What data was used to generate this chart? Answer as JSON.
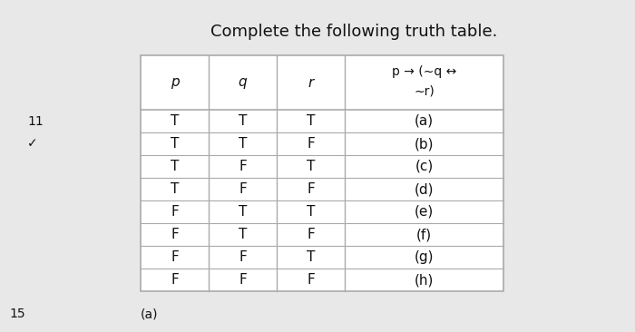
{
  "title": "Complete the following truth table.",
  "title_fontsize": 13,
  "background_color": "#e8e8e8",
  "table_background": "#ffffff",
  "header_row1": [
    "p",
    "q",
    "r",
    "p → (∼q ↔"
  ],
  "header_row2": [
    "",
    "",
    "",
    "∼r)"
  ],
  "data_rows": [
    [
      "T",
      "T",
      "T",
      "(a)"
    ],
    [
      "T",
      "T",
      "F",
      "(b)"
    ],
    [
      "T",
      "F",
      "T",
      "(c)"
    ],
    [
      "T",
      "F",
      "F",
      "(d)"
    ],
    [
      "F",
      "T",
      "T",
      "(e)"
    ],
    [
      "F",
      "T",
      "F",
      "(f)"
    ],
    [
      "F",
      "F",
      "T",
      "(g)"
    ],
    [
      "F",
      "F",
      "F",
      "(h)"
    ]
  ],
  "line_color": "#aaaaaa",
  "text_color": "#111111",
  "font_size": 11,
  "label_11": "11",
  "label_15": "15",
  "label_check": "✓",
  "label_a": "(a)"
}
